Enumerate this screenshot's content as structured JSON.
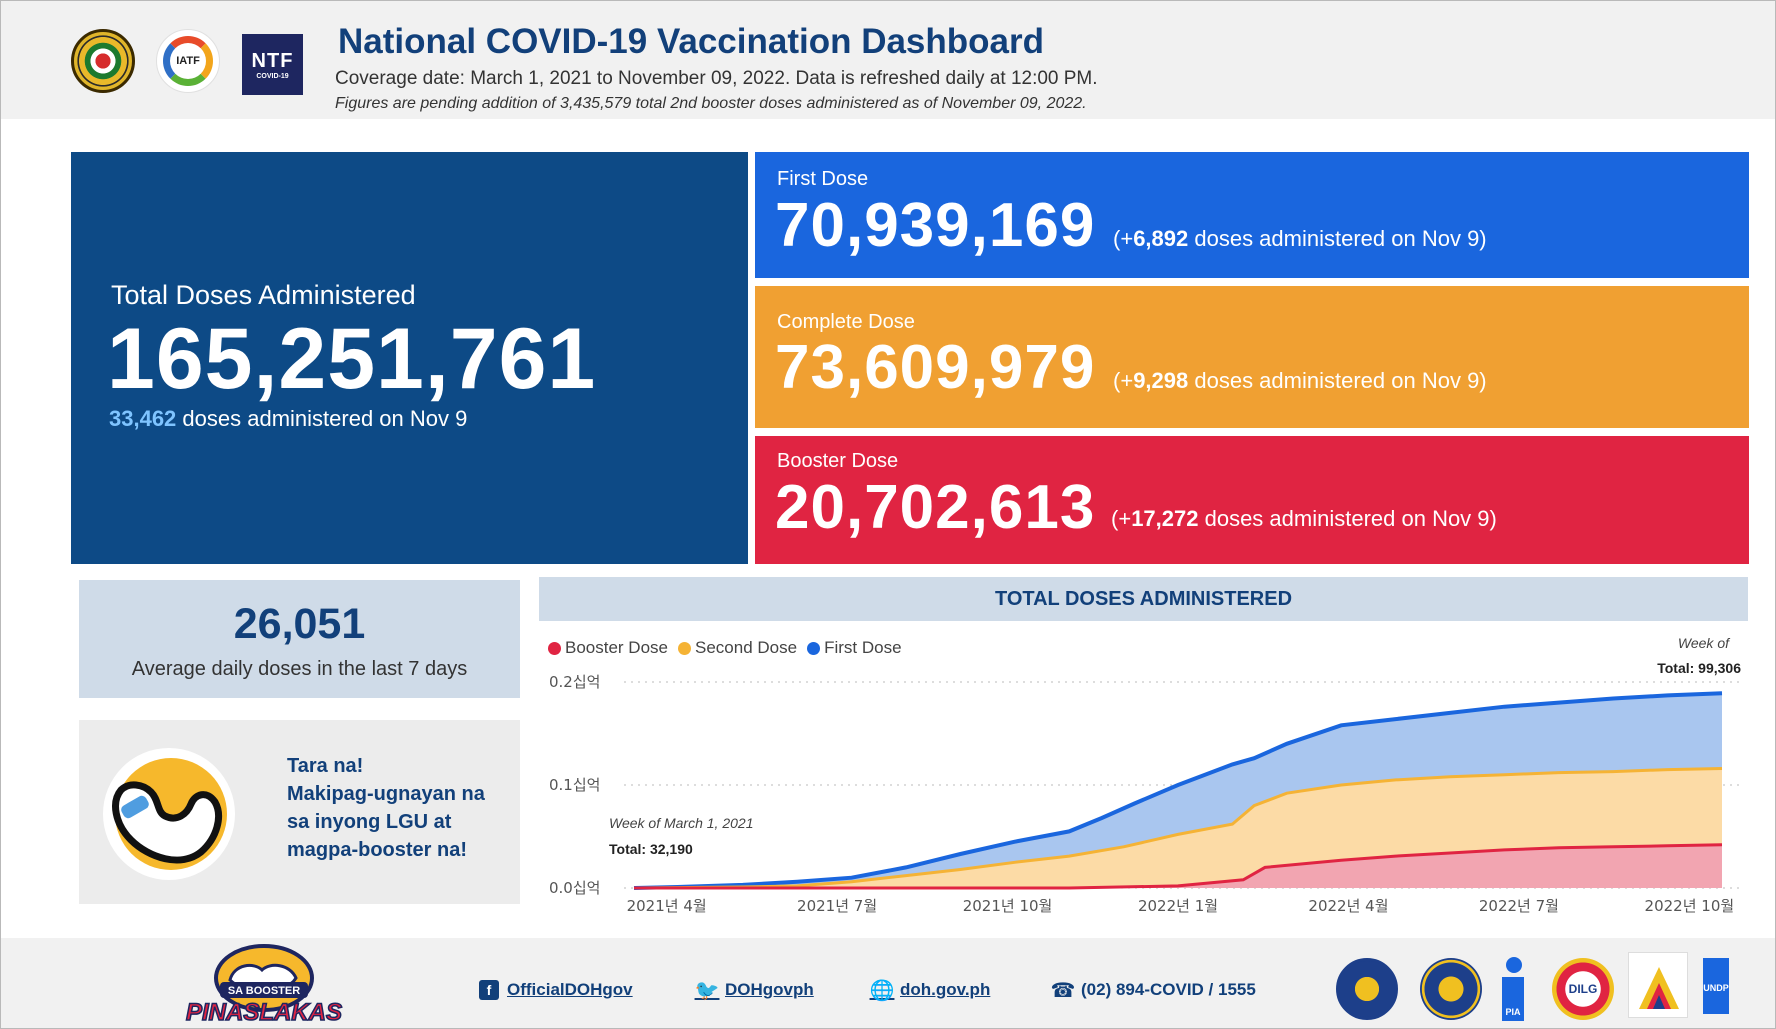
{
  "header": {
    "title": "National COVID-19 Vaccination Dashboard",
    "coverage": "Coverage date: March 1, 2021 to November 09, 2022. Data is refreshed daily at 12:00 PM.",
    "note": "Figures are pending addition of 3,435,579 total 2nd booster doses administered as of November 09, 2022.",
    "logos": {
      "iatf": "IATF",
      "ntf_main": "NTF",
      "ntf_sub": "COVID-19"
    }
  },
  "total": {
    "label": "Total Doses Administered",
    "value": "165,251,761",
    "daily_value": "33,462",
    "daily_text": " doses administered on Nov 9"
  },
  "first": {
    "label": "First Dose",
    "value": "70,939,169",
    "inc_prefix": "(+",
    "inc_value": "6,892",
    "inc_suffix": " doses administered on Nov 9)"
  },
  "complete": {
    "label": "Complete Dose",
    "value": "73,609,979",
    "inc_prefix": "(+",
    "inc_value": "9,298",
    "inc_suffix": " doses administered on Nov 9)"
  },
  "booster": {
    "label": "Booster Dose",
    "value": "20,702,613",
    "inc_prefix": "(+",
    "inc_value": "17,272",
    "inc_suffix": " doses administered on Nov 9)"
  },
  "average": {
    "value": "26,051",
    "caption": "Average daily doses in the last 7 days"
  },
  "promo": {
    "lines": [
      "Tara na!",
      "Makipag-ugnayan na",
      "sa inyong LGU at",
      "magpa-booster na!"
    ]
  },
  "chart_data": {
    "type": "area",
    "title": "TOTAL DOSES ADMINISTERED",
    "series": [
      {
        "name": "Booster Dose",
        "color": "#e02442"
      },
      {
        "name": "Second Dose",
        "color": "#f5b335"
      },
      {
        "name": "First Dose",
        "color": "#1a66de"
      }
    ],
    "x_ticks": [
      "2021년 4월",
      "2021년 7월",
      "2021년 10월",
      "2022년 1월",
      "2022년 4월",
      "2022년 7월",
      "2022년 10월"
    ],
    "y_ticks": [
      "0.0십억",
      "0.1십억",
      "0.2십억"
    ],
    "y_range": [
      0,
      0.2
    ],
    "stack_top": [
      [
        0,
        0.0
      ],
      [
        0.04,
        0.001
      ],
      [
        0.1,
        0.003
      ],
      [
        0.15,
        0.006
      ],
      [
        0.2,
        0.01
      ],
      [
        0.25,
        0.02
      ],
      [
        0.3,
        0.033
      ],
      [
        0.35,
        0.045
      ],
      [
        0.4,
        0.055
      ],
      [
        0.43,
        0.068
      ],
      [
        0.46,
        0.082
      ],
      [
        0.5,
        0.1
      ],
      [
        0.55,
        0.12
      ],
      [
        0.57,
        0.126
      ],
      [
        0.6,
        0.14
      ],
      [
        0.65,
        0.158
      ],
      [
        0.7,
        0.164
      ],
      [
        0.75,
        0.17
      ],
      [
        0.8,
        0.176
      ],
      [
        0.85,
        0.18
      ],
      [
        0.9,
        0.184
      ],
      [
        0.95,
        0.187
      ],
      [
        1,
        0.189
      ]
    ],
    "second_top": [
      [
        0,
        0.0
      ],
      [
        0.1,
        0.001
      ],
      [
        0.15,
        0.002
      ],
      [
        0.2,
        0.006
      ],
      [
        0.25,
        0.012
      ],
      [
        0.3,
        0.018
      ],
      [
        0.35,
        0.025
      ],
      [
        0.4,
        0.031
      ],
      [
        0.45,
        0.04
      ],
      [
        0.5,
        0.052
      ],
      [
        0.55,
        0.062
      ],
      [
        0.57,
        0.08
      ],
      [
        0.6,
        0.092
      ],
      [
        0.65,
        0.1
      ],
      [
        0.7,
        0.105
      ],
      [
        0.75,
        0.108
      ],
      [
        0.8,
        0.11
      ],
      [
        0.85,
        0.112
      ],
      [
        0.9,
        0.113
      ],
      [
        0.95,
        0.115
      ],
      [
        1,
        0.116
      ]
    ],
    "booster_top": [
      [
        0,
        0.0
      ],
      [
        0.4,
        0.0
      ],
      [
        0.5,
        0.002
      ],
      [
        0.56,
        0.008
      ],
      [
        0.58,
        0.02
      ],
      [
        0.65,
        0.027
      ],
      [
        0.7,
        0.031
      ],
      [
        0.75,
        0.034
      ],
      [
        0.8,
        0.037
      ],
      [
        0.85,
        0.039
      ],
      [
        0.9,
        0.04
      ],
      [
        0.95,
        0.041
      ],
      [
        1,
        0.042
      ]
    ],
    "annotations": {
      "start_week": "Week of March 1, 2021",
      "start_total": "Total: 32,190",
      "end_week": "Week of",
      "end_total": "Total: 99,306"
    }
  },
  "footer": {
    "campaign_top": "SA BOOSTER",
    "campaign_bottom": "PINASLAKAS",
    "facebook": "OfficialDOHgov",
    "twitter": "DOHgovph",
    "website": "doh.gov.ph",
    "phone": "(02) 894-COVID / 1555",
    "agency_labels": {
      "pia": "PIA",
      "dilg": "DILG",
      "undp": "UNDP"
    }
  }
}
